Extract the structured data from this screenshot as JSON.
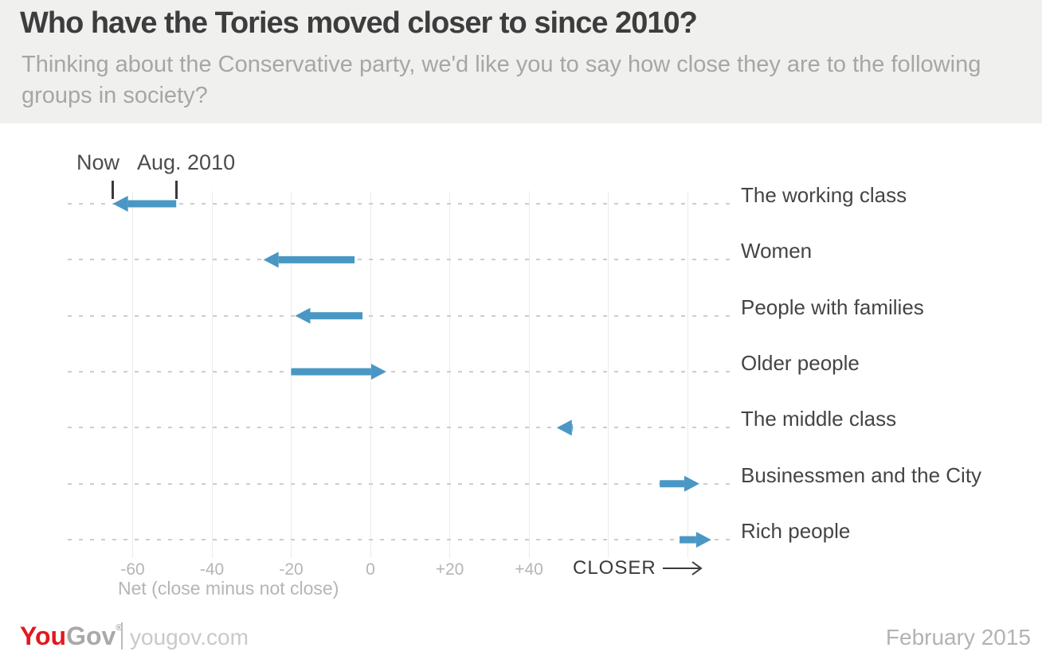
{
  "header": {
    "title": "Who have the Tories moved closer to since 2010?",
    "subtitle": "Thinking about the Conservative party, we'd like you to say how close they are to the following groups in society?"
  },
  "chart_data": {
    "type": "arrow",
    "legend": {
      "now": "Now",
      "then": "Aug. 2010"
    },
    "categories": [
      "The working class",
      "Women",
      "People with families",
      "Older people",
      "The middle class",
      "Businessmen and the City",
      "Rich people"
    ],
    "series": [
      {
        "name": "Aug. 2010",
        "values": [
          -49,
          -4,
          -2,
          -20,
          51,
          73,
          78
        ]
      },
      {
        "name": "Now",
        "values": [
          -65,
          -27,
          -19,
          4,
          47,
          83,
          86
        ]
      }
    ],
    "x_ticks": [
      {
        "value": -60,
        "label": "-60"
      },
      {
        "value": -40,
        "label": "-40"
      },
      {
        "value": -20,
        "label": "-20"
      },
      {
        "value": 0,
        "label": "0"
      },
      {
        "value": 20,
        "label": "+20"
      },
      {
        "value": 40,
        "label": "+40"
      }
    ],
    "gridline_values": [
      -60,
      -40,
      -20,
      0,
      20,
      40,
      60,
      80
    ],
    "xlim": [
      -72,
      92
    ],
    "closer_label": "CLOSER",
    "xlabel": "Net (close minus not close)",
    "arrow_color": "#4a97c4",
    "grid": "on",
    "legend_position": "top-left"
  },
  "footer": {
    "logo_you": "You",
    "logo_gov": "Gov",
    "logo_mark": "®",
    "site": "yougov.com",
    "date": "February 2015"
  }
}
